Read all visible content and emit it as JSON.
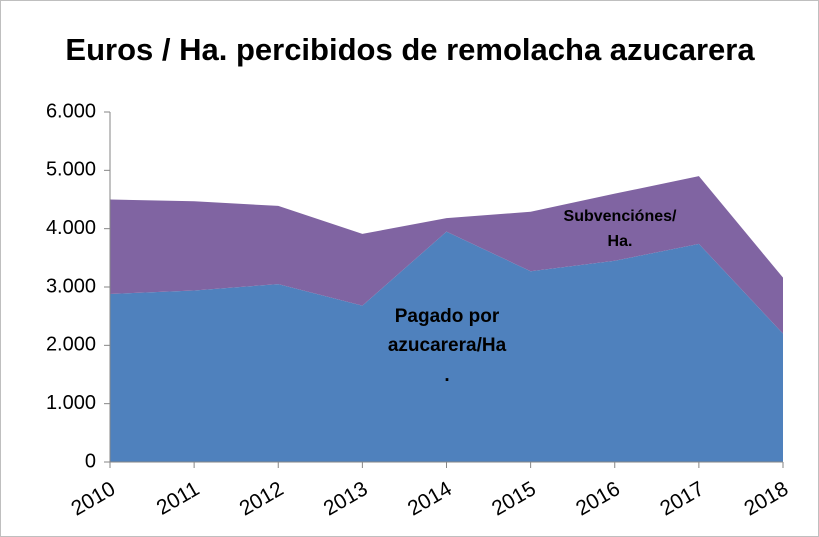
{
  "chart_data": {
    "type": "stacked_area",
    "title": "Euros / Ha. percibidos de remolacha azucarera",
    "categories": [
      "2010",
      "2011",
      "2012",
      "2013",
      "2014",
      "2015",
      "2016",
      "2017",
      "2018"
    ],
    "series": [
      {
        "name": "Pagado por\nazucarera/Ha\n.",
        "color": "#4f81bd",
        "values": [
          2880,
          2940,
          3050,
          2680,
          3950,
          3270,
          3450,
          3740,
          2200
        ]
      },
      {
        "name": "Subvenciónes/\nHa.",
        "color": "#8064a2",
        "values": [
          1620,
          1530,
          1340,
          1230,
          230,
          1020,
          1150,
          1160,
          960
        ]
      }
    ],
    "ylim": [
      0,
      6000
    ],
    "yticks": [
      0,
      {
        "value": 1000,
        "label": "1.000"
      },
      {
        "value": 2000,
        "label": "2.000"
      },
      {
        "value": 3000,
        "label": "3.000"
      },
      {
        "value": 4000,
        "label": "4.000"
      },
      {
        "value": 5000,
        "label": "5.000"
      },
      {
        "value": 6000,
        "label": "6.000"
      }
    ]
  }
}
